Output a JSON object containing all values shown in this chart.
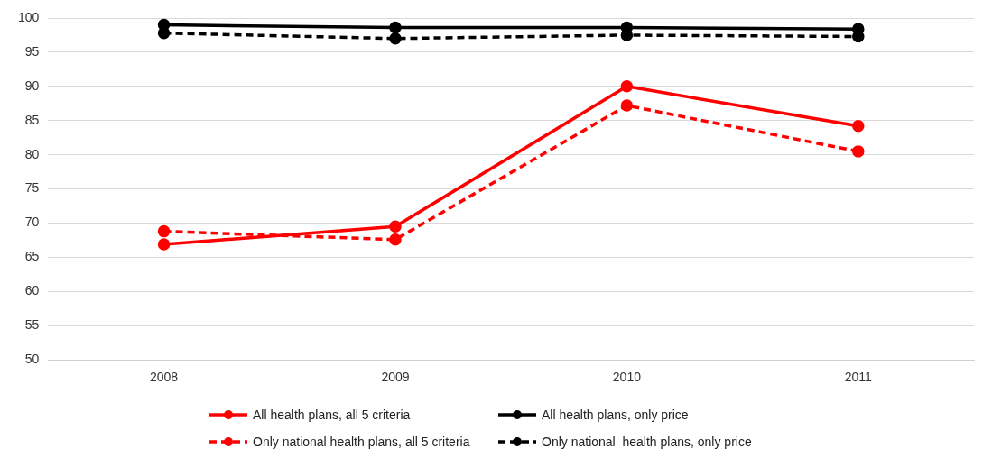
{
  "chart_data": {
    "type": "line",
    "categories": [
      "2008",
      "2009",
      "2010",
      "2011"
    ],
    "series": [
      {
        "name": "All health plans, all 5 criteria",
        "color": "#ff0000",
        "line_style": "solid",
        "values": [
          66.9,
          69.5,
          90.0,
          84.2
        ]
      },
      {
        "name": "All health plans, only price",
        "color": "#000000",
        "line_style": "solid",
        "values": [
          99.0,
          98.6,
          98.6,
          98.4
        ]
      },
      {
        "name": "Only national health plans, all 5 criteria",
        "color": "#ff0000",
        "line_style": "dashed",
        "values": [
          68.8,
          67.6,
          87.2,
          80.5
        ]
      },
      {
        "name": "Only national  health plans, only price",
        "color": "#000000",
        "line_style": "dashed",
        "values": [
          97.8,
          97.0,
          97.5,
          97.3
        ]
      }
    ],
    "ylim": [
      50,
      100
    ],
    "yticks": [
      50,
      55,
      60,
      65,
      70,
      75,
      80,
      85,
      90,
      95,
      100
    ],
    "grid": "y",
    "legend": "bottom",
    "marker": "circle"
  }
}
